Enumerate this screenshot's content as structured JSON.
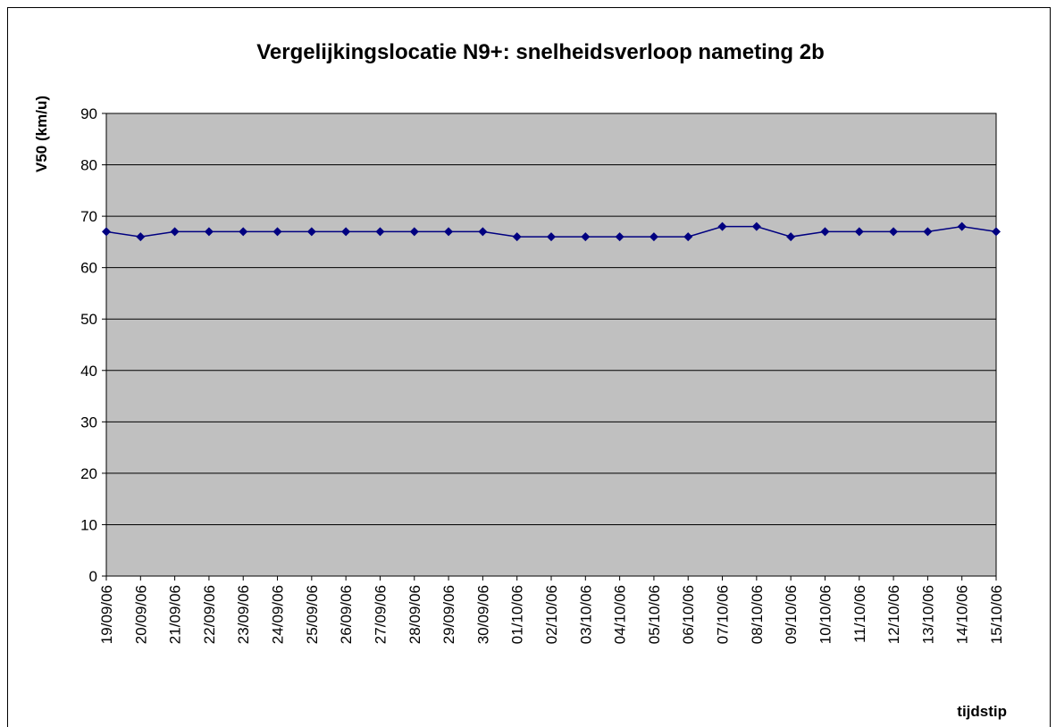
{
  "chart_data": {
    "type": "line",
    "title": "Vergelijkingslocatie N9+: snelheidsverloop nameting 2b",
    "y_label": "V50 (km/u)",
    "x_label": "tijdstip",
    "categories": [
      "19/09/06",
      "20/09/06",
      "21/09/06",
      "22/09/06",
      "23/09/06",
      "24/09/06",
      "25/09/06",
      "26/09/06",
      "27/09/06",
      "28/09/06",
      "29/09/06",
      "30/09/06",
      "01/10/06",
      "02/10/06",
      "03/10/06",
      "04/10/06",
      "05/10/06",
      "06/10/06",
      "07/10/06",
      "08/10/06",
      "09/10/06",
      "10/10/06",
      "11/10/06",
      "12/10/06",
      "13/10/06",
      "14/10/06",
      "15/10/06"
    ],
    "values": [
      67,
      66,
      67,
      67,
      67,
      67,
      67,
      67,
      67,
      67,
      67,
      67,
      66,
      66,
      66,
      66,
      66,
      66,
      68,
      68,
      66,
      67,
      67,
      67,
      67,
      68,
      67
    ],
    "color": "#000080",
    "plot_background": "#c0c0c0",
    "ylim": [
      0,
      90
    ],
    "yticks": [
      0,
      10,
      20,
      30,
      40,
      50,
      60,
      70,
      80,
      90
    ],
    "grid": true
  }
}
